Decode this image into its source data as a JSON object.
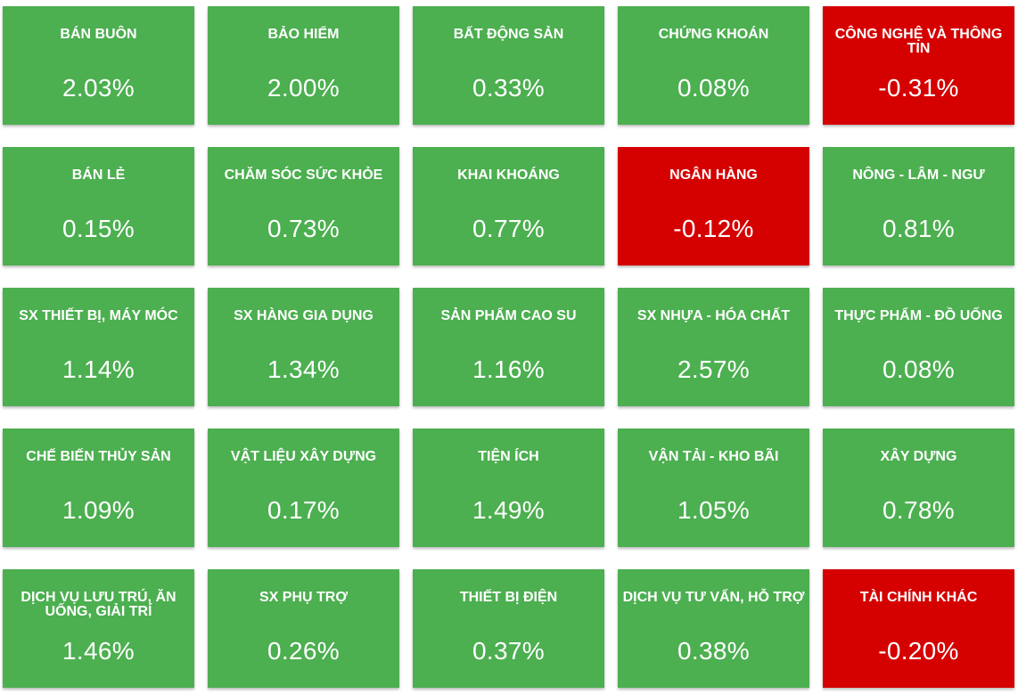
{
  "colors": {
    "positive": "#4caf50",
    "negative": "#d50000",
    "text": "#ffffff"
  },
  "sectors": [
    {
      "label": "BÁN BUÔN",
      "value": "2.03%",
      "trend": "up"
    },
    {
      "label": "BẢO HIỂM",
      "value": "2.00%",
      "trend": "up"
    },
    {
      "label": "BẤT ĐỘNG SẢN",
      "value": "0.33%",
      "trend": "up"
    },
    {
      "label": "CHỨNG KHOÁN",
      "value": "0.08%",
      "trend": "up"
    },
    {
      "label": "CÔNG NGHỆ VÀ THÔNG TIN",
      "value": "-0.31%",
      "trend": "down"
    },
    {
      "label": "BÁN LẺ",
      "value": "0.15%",
      "trend": "up"
    },
    {
      "label": "CHĂM SÓC SỨC KHỎE",
      "value": "0.73%",
      "trend": "up"
    },
    {
      "label": "KHAI KHOÁNG",
      "value": "0.77%",
      "trend": "up"
    },
    {
      "label": "NGÂN HÀNG",
      "value": "-0.12%",
      "trend": "down"
    },
    {
      "label": "NÔNG - LÂM - NGƯ",
      "value": "0.81%",
      "trend": "up"
    },
    {
      "label": "SX THIẾT BỊ, MÁY MÓC",
      "value": "1.14%",
      "trend": "up"
    },
    {
      "label": "SX HÀNG GIA DỤNG",
      "value": "1.34%",
      "trend": "up"
    },
    {
      "label": "SẢN PHẨM CAO SU",
      "value": "1.16%",
      "trend": "up"
    },
    {
      "label": "SX NHỰA - HÓA CHẤT",
      "value": "2.57%",
      "trend": "up"
    },
    {
      "label": "THỰC PHẨM - ĐỒ UỐNG",
      "value": "0.08%",
      "trend": "up"
    },
    {
      "label": "CHẾ BIẾN THỦY SẢN",
      "value": "1.09%",
      "trend": "up"
    },
    {
      "label": "VẬT LIỆU XÂY DỰNG",
      "value": "0.17%",
      "trend": "up"
    },
    {
      "label": "TIỆN ÍCH",
      "value": "1.49%",
      "trend": "up"
    },
    {
      "label": "VẬN TẢI - KHO BÃI",
      "value": "1.05%",
      "trend": "up"
    },
    {
      "label": "XÂY DỰNG",
      "value": "0.78%",
      "trend": "up"
    },
    {
      "label": "DỊCH VỤ LƯU TRÚ, ĂN UỐNG, GIẢI TRÍ",
      "value": "1.46%",
      "trend": "up"
    },
    {
      "label": "SX PHỤ TRỢ",
      "value": "0.26%",
      "trend": "up"
    },
    {
      "label": "THIẾT BỊ ĐIỆN",
      "value": "0.37%",
      "trend": "up"
    },
    {
      "label": "DỊCH VỤ TƯ VẤN, HỖ TRỢ",
      "value": "0.38%",
      "trend": "up"
    },
    {
      "label": "TÀI CHÍNH KHÁC",
      "value": "-0.20%",
      "trend": "down"
    }
  ]
}
